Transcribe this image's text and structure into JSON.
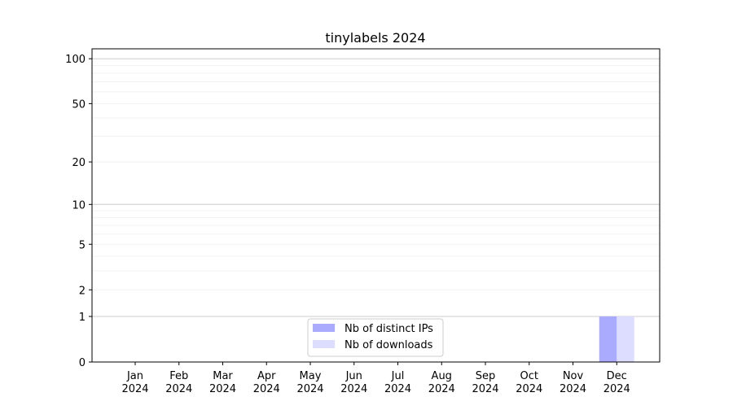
{
  "chart_data": {
    "type": "bar",
    "title": "tinylabels 2024",
    "xlabel": "",
    "ylabel": "",
    "y_scale": "log(1+y)",
    "ylim": [
      0,
      116
    ],
    "y_ticks": [
      0,
      1,
      2,
      5,
      10,
      20,
      50,
      100
    ],
    "grid": true,
    "legend_position": "lower-center",
    "categories": [
      "Jan\n2024",
      "Feb\n2024",
      "Mar\n2024",
      "Apr\n2024",
      "May\n2024",
      "Jun\n2024",
      "Jul\n2024",
      "Aug\n2024",
      "Sep\n2024",
      "Oct\n2024",
      "Nov\n2024",
      "Dec\n2024"
    ],
    "series": [
      {
        "name": "Nb of distinct IPs",
        "color": "#aaaaff",
        "values": [
          0,
          0,
          0,
          0,
          0,
          0,
          0,
          0,
          0,
          0,
          0,
          1
        ]
      },
      {
        "name": "Nb of downloads",
        "color": "#ddddff",
        "values": [
          0,
          0,
          0,
          0,
          0,
          0,
          0,
          0,
          0,
          0,
          0,
          1
        ]
      }
    ]
  }
}
